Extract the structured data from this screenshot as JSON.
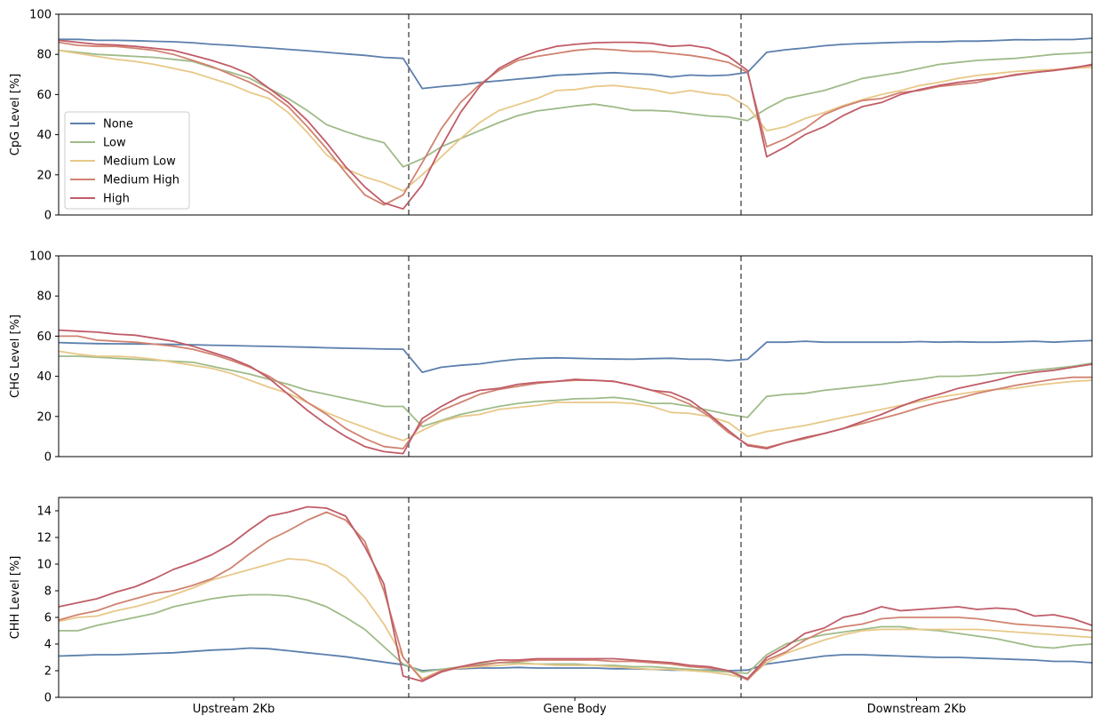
{
  "chart_data": {
    "type": "line",
    "regions": [
      "Upstream 2Kb",
      "Gene Body",
      "Downstream 2Kb"
    ],
    "legend": {
      "placement": "lower-left of top panel",
      "entries": [
        "None",
        "Low",
        "Medium Low",
        "Medium High",
        "High"
      ]
    },
    "colors": {
      "None": "#5b7fad",
      "Low": "#9fbb88",
      "Medium Low": "#e8c888",
      "Medium High": "#d08270",
      "High": "#c05c68",
      "boundary": "#777777"
    },
    "panels": [
      {
        "ylabel": "CpG Level [%]",
        "ylim": [
          0,
          100
        ],
        "yticks": [
          "0",
          "20",
          "40",
          "60",
          "80",
          "100"
        ],
        "series": [
          {
            "name": "None",
            "values": [
              87.5,
              87.5,
              87,
              87,
              86.8,
              86.5,
              86.3,
              85.8,
              85,
              84.5,
              83.8,
              83.2,
              82.5,
              81.8,
              81,
              80.2,
              79.5,
              78.5,
              78,
              63,
              64,
              64.8,
              66,
              66.8,
              67.7,
              68.5,
              69.6,
              70,
              70.5,
              70.9,
              70.4,
              70,
              68.7,
              69.7,
              69.3,
              69.7,
              71,
              81,
              82.3,
              83.2,
              84.3,
              85,
              85.4,
              85.7,
              86,
              86.2,
              86.2,
              86.6,
              86.6,
              86.9,
              87.3,
              87.2,
              87.4,
              87.4,
              88
            ]
          },
          {
            "name": "Low",
            "values": [
              82,
              81,
              80,
              79.5,
              79,
              78.5,
              77.5,
              76.5,
              73.5,
              71,
              68,
              63,
              58,
              52,
              45,
              41.5,
              38.5,
              36,
              24,
              28,
              34,
              38,
              42,
              46,
              49.5,
              51.8,
              53,
              54.3,
              55.2,
              53.8,
              52.1,
              52.1,
              51.6,
              50.4,
              49.3,
              48.8,
              47,
              53,
              58,
              60,
              62,
              65,
              68,
              69.5,
              71,
              73,
              75,
              76,
              77,
              77.5,
              78,
              79,
              80,
              80.5,
              81
            ]
          },
          {
            "name": "Medium Low",
            "values": [
              82,
              80.5,
              79,
              77.5,
              76.5,
              75,
              73,
              71,
              68,
              65,
              61,
              58,
              51,
              41,
              30,
              23,
              19,
              16,
              12,
              20,
              29,
              38,
              46,
              52,
              55,
              58,
              62,
              62.5,
              64,
              64.5,
              63.5,
              62.5,
              60.5,
              62,
              60.5,
              59.5,
              54,
              42,
              44,
              48,
              51,
              54.5,
              57.5,
              60,
              62,
              64.5,
              66,
              68,
              69.5,
              70.5,
              71.5,
              72,
              72.5,
              73,
              73.5
            ]
          },
          {
            "name": "Medium High",
            "values": [
              86,
              84.5,
              84,
              84,
              83,
              82,
              80,
              77,
              74,
              70,
              66,
              61,
              54,
              44,
              33,
              21,
              10,
              5,
              10,
              26,
              43,
              56,
              65,
              72,
              77,
              79,
              80.5,
              82,
              82.8,
              82.3,
              81.5,
              81.5,
              80.5,
              79.5,
              78,
              76,
              71,
              34,
              38,
              43,
              50,
              54,
              57,
              58,
              61,
              62,
              64,
              65,
              66,
              68,
              70,
              71,
              72,
              73.5,
              74.5
            ]
          },
          {
            "name": "High",
            "values": [
              87,
              86,
              85,
              84.7,
              84,
              83,
              82,
              79.5,
              77,
              74,
              70,
              63,
              56,
              47,
              36,
              24,
              14,
              6,
              3,
              15,
              34,
              51,
              64,
              73,
              78,
              81.5,
              84,
              85,
              85.8,
              86,
              86,
              85.5,
              84,
              84.5,
              83,
              79,
              72,
              29,
              34,
              40,
              44,
              49.5,
              54,
              56,
              60,
              62.5,
              64.5,
              66,
              67.2,
              68.2,
              69.7,
              71,
              72,
              73.2,
              75
            ]
          }
        ]
      },
      {
        "ylabel": "CHG Level [%]",
        "ylim": [
          0,
          100
        ],
        "yticks": [
          "0",
          "20",
          "40",
          "60",
          "80",
          "100"
        ],
        "series": [
          {
            "name": "None",
            "values": [
              56.8,
              56.5,
              56.3,
              56.2,
              56.1,
              56,
              55.9,
              55.7,
              55.5,
              55.3,
              55.1,
              54.9,
              54.7,
              54.5,
              54.2,
              54,
              53.8,
              53.6,
              53.5,
              42,
              44.5,
              45.5,
              46.2,
              47.5,
              48.5,
              49,
              49.2,
              49,
              48.7,
              48.6,
              48.5,
              48.8,
              49,
              48.5,
              48.5,
              47.8,
              48.5,
              57,
              57,
              57.5,
              57,
              57,
              57,
              57,
              57,
              57.3,
              57,
              57.2,
              57,
              57,
              57.2,
              57.5,
              57,
              57.5,
              57.8
            ]
          },
          {
            "name": "Low",
            "values": [
              50,
              50,
              49.5,
              49,
              48.5,
              48,
              47.5,
              47,
              45,
              43,
              41,
              38.5,
              36,
              33,
              31,
              29,
              27,
              25,
              25,
              15,
              18,
              21,
              23,
              25,
              26.5,
              27.5,
              28,
              28.8,
              29,
              29.5,
              28.5,
              26.5,
              26.5,
              25,
              23,
              21,
              19.5,
              30,
              31,
              31.5,
              33,
              34,
              35,
              36,
              37.5,
              38.5,
              40,
              40,
              40.5,
              41.5,
              42,
              43,
              44,
              45,
              46.5
            ]
          },
          {
            "name": "Medium Low",
            "values": [
              52.5,
              51,
              50,
              50,
              49.5,
              48.5,
              47,
              45.5,
              44,
              41.5,
              38,
              34.5,
              31.5,
              27,
              22,
              18,
              14.5,
              11,
              8,
              13,
              17.5,
              20,
              21,
              23.5,
              24.5,
              25.5,
              27,
              27,
              27,
              27,
              26.5,
              25,
              22,
              21.5,
              20,
              17,
              10,
              12.5,
              14,
              15.5,
              17.5,
              19.5,
              21.5,
              23.5,
              25.5,
              27.5,
              29.5,
              31,
              32.5,
              33.5,
              34,
              35.5,
              36.5,
              37.5,
              38
            ]
          },
          {
            "name": "Medium High",
            "values": [
              60,
              60,
              58,
              57.5,
              57,
              56,
              55,
              53.5,
              51,
              48,
              44.5,
              40,
              34,
              27,
              21,
              14,
              9,
              5,
              4,
              17,
              23,
              27,
              31,
              33.5,
              35,
              36.5,
              37.5,
              38,
              38,
              37.5,
              35.5,
              33,
              30,
              26,
              20,
              12,
              6,
              4.5,
              7,
              9,
              11.5,
              14,
              16.5,
              19,
              21.5,
              24.5,
              27,
              29,
              31.5,
              33.5,
              35.5,
              37,
              38.5,
              39.5,
              39.5
            ]
          },
          {
            "name": "High",
            "values": [
              63,
              62.5,
              62,
              61,
              60.5,
              59,
              57.5,
              55,
              52,
              49,
              45,
              39,
              31,
              23,
              16,
              10,
              5,
              2.5,
              1.5,
              19,
              25,
              30,
              33,
              34,
              36,
              37,
              37.5,
              38.5,
              38,
              37.5,
              35.5,
              33,
              32,
              28,
              21,
              13,
              5.5,
              4,
              7,
              9.5,
              11.5,
              14,
              17.5,
              21,
              25,
              28.5,
              31,
              34,
              36,
              38,
              40.5,
              42,
              43,
              44.5,
              46
            ]
          }
        ]
      },
      {
        "ylabel": "CHH Level [%]",
        "ylim": [
          0,
          15
        ],
        "yticks": [
          "0",
          "2",
          "4",
          "6",
          "8",
          "10",
          "12",
          "14"
        ],
        "series": [
          {
            "name": "None",
            "values": [
              3.1,
              3.15,
              3.2,
              3.2,
              3.25,
              3.3,
              3.35,
              3.45,
              3.55,
              3.6,
              3.7,
              3.65,
              3.5,
              3.35,
              3.2,
              3.05,
              2.85,
              2.65,
              2.45,
              2,
              2.1,
              2.15,
              2.2,
              2.2,
              2.25,
              2.2,
              2.2,
              2.2,
              2.2,
              2.15,
              2.15,
              2.1,
              2.05,
              2.05,
              2.05,
              2,
              2.05,
              2.5,
              2.7,
              2.9,
              3.1,
              3.2,
              3.2,
              3.15,
              3.1,
              3.05,
              3,
              3,
              2.95,
              2.9,
              2.85,
              2.8,
              2.7,
              2.7,
              2.6
            ]
          },
          {
            "name": "Low",
            "values": [
              5,
              5,
              5.4,
              5.7,
              6,
              6.3,
              6.8,
              7.1,
              7.4,
              7.6,
              7.7,
              7.7,
              7.6,
              7.3,
              6.8,
              6,
              5.1,
              3.8,
              2.5,
              1.9,
              2.1,
              2.3,
              2.5,
              2.6,
              2.6,
              2.5,
              2.5,
              2.5,
              2.4,
              2.4,
              2.3,
              2.3,
              2.2,
              2.1,
              2,
              1.9,
              1.8,
              3.2,
              4,
              4.4,
              4.7,
              4.9,
              5.1,
              5.3,
              5.3,
              5.1,
              5,
              4.8,
              4.6,
              4.4,
              4.1,
              3.8,
              3.7,
              3.9,
              4
            ]
          },
          {
            "name": "Medium Low",
            "values": [
              5.7,
              6,
              6.1,
              6.5,
              6.8,
              7.2,
              7.7,
              8.2,
              8.8,
              9.2,
              9.6,
              10,
              10.4,
              10.3,
              9.9,
              9,
              7.5,
              5.5,
              3,
              1.4,
              2,
              2.2,
              2.3,
              2.4,
              2.5,
              2.5,
              2.4,
              2.4,
              2.4,
              2.3,
              2.2,
              2.1,
              2.1,
              2,
              1.9,
              1.7,
              1.4,
              2.6,
              3.3,
              3.8,
              4.3,
              4.7,
              5,
              5.1,
              5.1,
              5.1,
              5.1,
              5.1,
              5.1,
              5,
              4.9,
              4.8,
              4.7,
              4.6,
              4.5
            ]
          },
          {
            "name": "Medium High",
            "values": [
              5.8,
              6.2,
              6.5,
              7,
              7.4,
              7.8,
              8,
              8.4,
              8.9,
              9.7,
              10.8,
              11.8,
              12.5,
              13.3,
              13.9,
              13.3,
              11.7,
              8,
              3,
              1.3,
              2,
              2.3,
              2.4,
              2.6,
              2.7,
              2.8,
              2.8,
              2.8,
              2.8,
              2.7,
              2.7,
              2.6,
              2.5,
              2.3,
              2.2,
              2,
              1.3,
              2.8,
              3.4,
              4.3,
              5,
              5.3,
              5.5,
              5.9,
              6,
              6,
              6,
              6,
              5.9,
              5.7,
              5.5,
              5.4,
              5.3,
              5.2,
              5
            ]
          },
          {
            "name": "High",
            "values": [
              6.8,
              7.1,
              7.4,
              7.9,
              8.3,
              8.9,
              9.6,
              10.1,
              10.7,
              11.5,
              12.6,
              13.6,
              13.9,
              14.3,
              14.2,
              13.6,
              11.3,
              8.5,
              1.6,
              1.2,
              1.9,
              2.3,
              2.6,
              2.8,
              2.8,
              2.9,
              2.9,
              2.9,
              2.9,
              2.9,
              2.8,
              2.7,
              2.6,
              2.4,
              2.3,
              2,
              1.4,
              3,
              3.8,
              4.8,
              5.2,
              6,
              6.3,
              6.8,
              6.5,
              6.6,
              6.7,
              6.8,
              6.6,
              6.7,
              6.6,
              6.1,
              6.2,
              5.9,
              5.4
            ]
          }
        ]
      }
    ]
  }
}
